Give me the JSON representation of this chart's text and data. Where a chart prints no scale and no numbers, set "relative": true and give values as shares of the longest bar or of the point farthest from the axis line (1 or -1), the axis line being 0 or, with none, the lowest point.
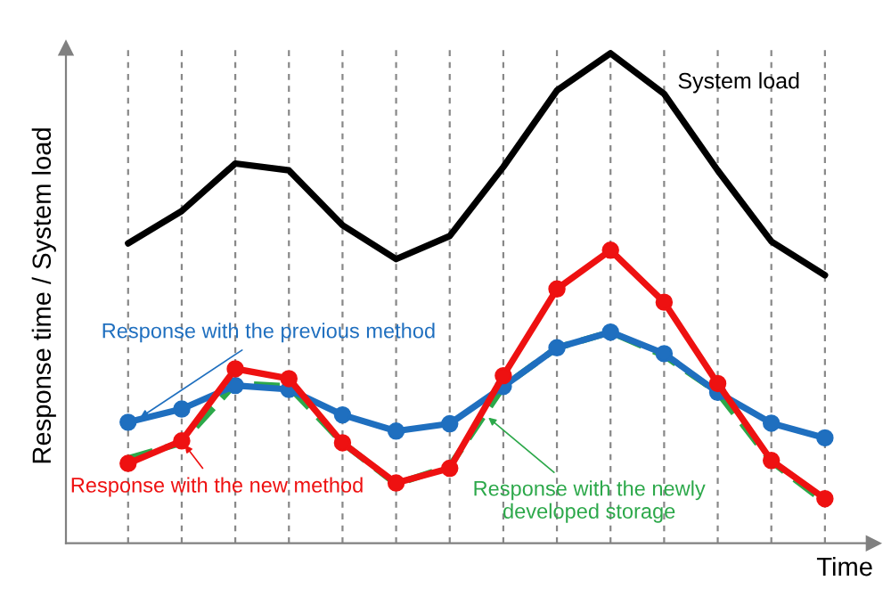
{
  "chart_data": {
    "type": "line",
    "relative": true,
    "xlabel": "Time",
    "ylabel": "Response time / System load",
    "grid": "x",
    "line_style": "solid",
    "categories": [
      null,
      null,
      null,
      null,
      null,
      null,
      null,
      null,
      null,
      null,
      null,
      null,
      null,
      null
    ],
    "series": [
      {
        "name": "System load",
        "color": "#000000",
        "marker": "none",
        "values": [
          0.612,
          0.678,
          0.775,
          0.761,
          0.649,
          0.58,
          0.627,
          0.768,
          0.924,
          1.0,
          0.917,
          0.761,
          0.616,
          0.547
        ]
      },
      {
        "name": "Response with the newly\ndeveloped storage",
        "color": "#2ca84a",
        "marker": "none",
        "line_style": "dashed",
        "values": [
          0.173,
          0.205,
          0.326,
          0.32,
          0.205,
          0.121,
          0.157,
          0.32,
          0.399,
          0.431,
          0.383,
          0.308,
          0.167,
          0.084
        ]
      },
      {
        "name": "Response with the previous method",
        "color": "#1f6fbf",
        "marker": "circle",
        "values": [
          0.247,
          0.274,
          0.322,
          0.314,
          0.262,
          0.229,
          0.244,
          0.32,
          0.399,
          0.431,
          0.387,
          0.308,
          0.245,
          0.215
        ]
      },
      {
        "name": "Response with the new method",
        "color": "#ee1111",
        "marker": "circle",
        "values": [
          0.163,
          0.209,
          0.356,
          0.336,
          0.205,
          0.123,
          0.153,
          0.342,
          0.519,
          0.598,
          0.492,
          0.326,
          0.169,
          0.091
        ]
      }
    ]
  }
}
